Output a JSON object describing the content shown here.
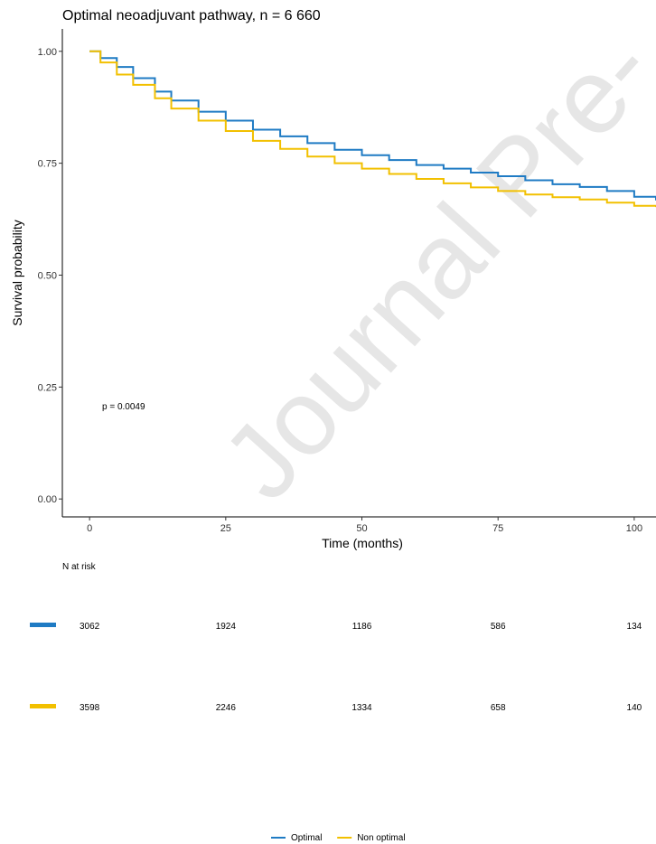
{
  "chart_data": {
    "type": "line",
    "title": "Optimal neoadjuvant pathway, n = 6 660",
    "xlabel": "Time (months)",
    "ylabel": "Survival probability",
    "xlim": [
      -5,
      104
    ],
    "ylim": [
      -0.04,
      1.05
    ],
    "xticks": [
      0,
      25,
      50,
      75,
      100
    ],
    "xtick_labels": [
      "0",
      "25",
      "50",
      "75",
      "100"
    ],
    "yticks": [
      0,
      0.25,
      0.5,
      0.75,
      1.0
    ],
    "ytick_labels": [
      "0.00",
      "0.25",
      "0.50",
      "0.75",
      "1.00"
    ],
    "grid": false,
    "annotation": "p = 0.0049",
    "watermark": "Journal Pre-",
    "series": [
      {
        "name": "Optimal",
        "color": "#1f7bc4",
        "x": [
          0,
          2,
          5,
          8,
          12,
          15,
          20,
          25,
          30,
          35,
          40,
          45,
          50,
          55,
          60,
          65,
          70,
          75,
          80,
          85,
          90,
          95,
          100,
          104
        ],
        "y": [
          1.0,
          0.985,
          0.965,
          0.94,
          0.91,
          0.89,
          0.865,
          0.845,
          0.825,
          0.81,
          0.795,
          0.78,
          0.768,
          0.757,
          0.746,
          0.738,
          0.729,
          0.721,
          0.712,
          0.703,
          0.697,
          0.688,
          0.675,
          0.667
        ]
      },
      {
        "name": "Non optimal",
        "color": "#f2c000",
        "x": [
          0,
          2,
          5,
          8,
          12,
          15,
          20,
          25,
          30,
          35,
          40,
          45,
          50,
          55,
          60,
          65,
          70,
          75,
          80,
          85,
          90,
          95,
          100,
          104
        ],
        "y": [
          1.0,
          0.975,
          0.948,
          0.925,
          0.895,
          0.872,
          0.845,
          0.822,
          0.8,
          0.782,
          0.765,
          0.75,
          0.738,
          0.726,
          0.715,
          0.705,
          0.696,
          0.688,
          0.68,
          0.674,
          0.669,
          0.662,
          0.655,
          0.652
        ]
      }
    ],
    "risk_table": {
      "title": "N at risk",
      "rows": [
        {
          "series": "Optimal",
          "color": "#1f7bc4",
          "values": [
            "3062",
            "1924",
            "1186",
            "586",
            "134"
          ]
        },
        {
          "series": "Non optimal",
          "color": "#f2c000",
          "values": [
            "3598",
            "2246",
            "1334",
            "658",
            "140"
          ]
        }
      ]
    },
    "legend": {
      "position": "bottom",
      "items": [
        {
          "label": "Optimal",
          "color": "#1f7bc4"
        },
        {
          "label": "Non optimal",
          "color": "#f2c000"
        }
      ]
    }
  }
}
